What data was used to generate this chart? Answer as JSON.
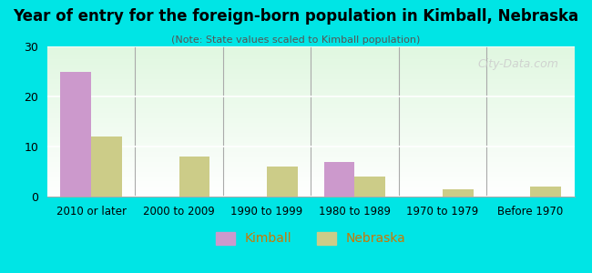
{
  "title": "Year of entry for the foreign-born population in Kimball, Nebraska",
  "subtitle": "(Note: State values scaled to Kimball population)",
  "categories": [
    "2010 or later",
    "2000 to 2009",
    "1990 to 1999",
    "1980 to 1989",
    "1970 to 1979",
    "Before 1970"
  ],
  "kimball_values": [
    25,
    0,
    0,
    7,
    0,
    0
  ],
  "nebraska_values": [
    12,
    8,
    6,
    4,
    1.5,
    2
  ],
  "kimball_color": "#cc99cc",
  "nebraska_color": "#cccc88",
  "background_color": "#00e5e5",
  "ylim": [
    0,
    30
  ],
  "yticks": [
    0,
    10,
    20,
    30
  ],
  "bar_width": 0.35,
  "legend_kimball": "Kimball",
  "legend_nebraska": "Nebraska",
  "watermark": "City-Data.com"
}
